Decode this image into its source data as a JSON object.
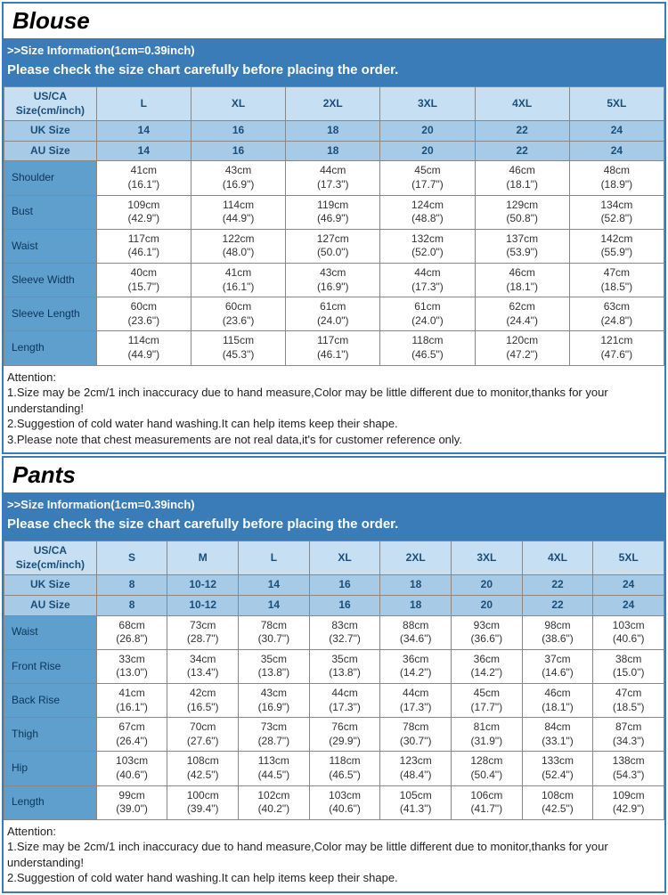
{
  "colors": {
    "banner_bg": "#3a7cb8",
    "header_light": "#c6dff2",
    "header_mid": "#a7cbe6",
    "row_label_bg": "#5f9fce",
    "border": "#888888",
    "text_dark": "#1a4e7a"
  },
  "blouse": {
    "title": "Blouse",
    "banner_line1": ">>Size Information(1cm=0.39inch)",
    "banner_line2": "Please check the size chart carefully before placing the order.",
    "col1_label": "US/CA Size(cm/inch)",
    "sizes": [
      "L",
      "XL",
      "2XL",
      "3XL",
      "4XL",
      "5XL"
    ],
    "uk_label": "UK Size",
    "uk": [
      "14",
      "16",
      "18",
      "20",
      "22",
      "24"
    ],
    "au_label": "AU Size",
    "au": [
      "14",
      "16",
      "18",
      "20",
      "22",
      "24"
    ],
    "rows": [
      {
        "label": "Shoulder",
        "cells": [
          [
            "41cm",
            "(16.1\")"
          ],
          [
            "43cm",
            "(16.9\")"
          ],
          [
            "44cm",
            "(17.3\")"
          ],
          [
            "45cm",
            "(17.7\")"
          ],
          [
            "46cm",
            "(18.1\")"
          ],
          [
            "48cm",
            "(18.9\")"
          ]
        ]
      },
      {
        "label": "Bust",
        "cells": [
          [
            "109cm",
            "(42.9\")"
          ],
          [
            "114cm",
            "(44.9\")"
          ],
          [
            "119cm",
            "(46.9\")"
          ],
          [
            "124cm",
            "(48.8\")"
          ],
          [
            "129cm",
            "(50.8\")"
          ],
          [
            "134cm",
            "(52.8\")"
          ]
        ]
      },
      {
        "label": "Waist",
        "cells": [
          [
            "117cm",
            "(46.1\")"
          ],
          [
            "122cm",
            "(48.0\")"
          ],
          [
            "127cm",
            "(50.0\")"
          ],
          [
            "132cm",
            "(52.0\")"
          ],
          [
            "137cm",
            "(53.9\")"
          ],
          [
            "142cm",
            "(55.9\")"
          ]
        ]
      },
      {
        "label": "Sleeve Width",
        "cells": [
          [
            "40cm",
            "(15.7\")"
          ],
          [
            "41cm",
            "(16.1\")"
          ],
          [
            "43cm",
            "(16.9\")"
          ],
          [
            "44cm",
            "(17.3\")"
          ],
          [
            "46cm",
            "(18.1\")"
          ],
          [
            "47cm",
            "(18.5\")"
          ]
        ]
      },
      {
        "label": "Sleeve Length",
        "cells": [
          [
            "60cm",
            "(23.6\")"
          ],
          [
            "60cm",
            "(23.6\")"
          ],
          [
            "61cm",
            "(24.0\")"
          ],
          [
            "61cm",
            "(24.0\")"
          ],
          [
            "62cm",
            "(24.4\")"
          ],
          [
            "63cm",
            "(24.8\")"
          ]
        ]
      },
      {
        "label": "Length",
        "cells": [
          [
            "114cm",
            "(44.9\")"
          ],
          [
            "115cm",
            "(45.3\")"
          ],
          [
            "117cm",
            "(46.1\")"
          ],
          [
            "118cm",
            "(46.5\")"
          ],
          [
            "120cm",
            "(47.2\")"
          ],
          [
            "121cm",
            "(47.6\")"
          ]
        ]
      }
    ],
    "attention_title": "Attention:",
    "attention_lines": [
      "1.Size may be 2cm/1 inch inaccuracy due to hand measure,Color may be little different due to monitor,thanks for your understanding!",
      "2.Suggestion of cold water hand washing.It can help items keep their shape.",
      "3.Please note that chest measurements are not real data,it's for customer reference only."
    ]
  },
  "pants": {
    "title": "Pants",
    "banner_line1": ">>Size Information(1cm=0.39inch)",
    "banner_line2": "Please check the size chart carefully before placing the order.",
    "col1_label": "US/CA Size(cm/inch)",
    "sizes": [
      "S",
      "M",
      "L",
      "XL",
      "2XL",
      "3XL",
      "4XL",
      "5XL"
    ],
    "uk_label": "UK Size",
    "uk": [
      "8",
      "10-12",
      "14",
      "16",
      "18",
      "20",
      "22",
      "24"
    ],
    "au_label": "AU Size",
    "au": [
      "8",
      "10-12",
      "14",
      "16",
      "18",
      "20",
      "22",
      "24"
    ],
    "rows": [
      {
        "label": "Waist",
        "cells": [
          [
            "68cm",
            "(26.8\")"
          ],
          [
            "73cm",
            "(28.7\")"
          ],
          [
            "78cm",
            "(30.7\")"
          ],
          [
            "83cm",
            "(32.7\")"
          ],
          [
            "88cm",
            "(34.6\")"
          ],
          [
            "93cm",
            "(36.6\")"
          ],
          [
            "98cm",
            "(38.6\")"
          ],
          [
            "103cm",
            "(40.6\")"
          ]
        ]
      },
      {
        "label": "Front Rise",
        "cells": [
          [
            "33cm",
            "(13.0\")"
          ],
          [
            "34cm",
            "(13.4\")"
          ],
          [
            "35cm",
            "(13.8\")"
          ],
          [
            "35cm",
            "(13.8\")"
          ],
          [
            "36cm",
            "(14.2\")"
          ],
          [
            "36cm",
            "(14.2\")"
          ],
          [
            "37cm",
            "(14.6\")"
          ],
          [
            "38cm",
            "(15.0\")"
          ]
        ]
      },
      {
        "label": "Back Rise",
        "cells": [
          [
            "41cm",
            "(16.1\")"
          ],
          [
            "42cm",
            "(16.5\")"
          ],
          [
            "43cm",
            "(16.9\")"
          ],
          [
            "44cm",
            "(17.3\")"
          ],
          [
            "44cm",
            "(17.3\")"
          ],
          [
            "45cm",
            "(17.7\")"
          ],
          [
            "46cm",
            "(18.1\")"
          ],
          [
            "47cm",
            "(18.5\")"
          ]
        ]
      },
      {
        "label": "Thigh",
        "cells": [
          [
            "67cm",
            "(26.4\")"
          ],
          [
            "70cm",
            "(27.6\")"
          ],
          [
            "73cm",
            "(28.7\")"
          ],
          [
            "76cm",
            "(29.9\")"
          ],
          [
            "78cm",
            "(30.7\")"
          ],
          [
            "81cm",
            "(31.9\")"
          ],
          [
            "84cm",
            "(33.1\")"
          ],
          [
            "87cm",
            "(34.3\")"
          ]
        ]
      },
      {
        "label": "Hip",
        "cells": [
          [
            "103cm",
            "(40.6\")"
          ],
          [
            "108cm",
            "(42.5\")"
          ],
          [
            "113cm",
            "(44.5\")"
          ],
          [
            "118cm",
            "(46.5\")"
          ],
          [
            "123cm",
            "(48.4\")"
          ],
          [
            "128cm",
            "(50.4\")"
          ],
          [
            "133cm",
            "(52.4\")"
          ],
          [
            "138cm",
            "(54.3\")"
          ]
        ]
      },
      {
        "label": "Length",
        "cells": [
          [
            "99cm",
            "(39.0\")"
          ],
          [
            "100cm",
            "(39.4\")"
          ],
          [
            "102cm",
            "(40.2\")"
          ],
          [
            "103cm",
            "(40.6\")"
          ],
          [
            "105cm",
            "(41.3\")"
          ],
          [
            "106cm",
            "(41.7\")"
          ],
          [
            "108cm",
            "(42.5\")"
          ],
          [
            "109cm",
            "(42.9\")"
          ]
        ]
      }
    ],
    "attention_title": "Attention:",
    "attention_lines": [
      "1.Size may be 2cm/1 inch inaccuracy due to hand measure,Color may be little different due to monitor,thanks for your understanding!",
      "2.Suggestion of cold water hand washing.It can help items keep their shape."
    ]
  }
}
